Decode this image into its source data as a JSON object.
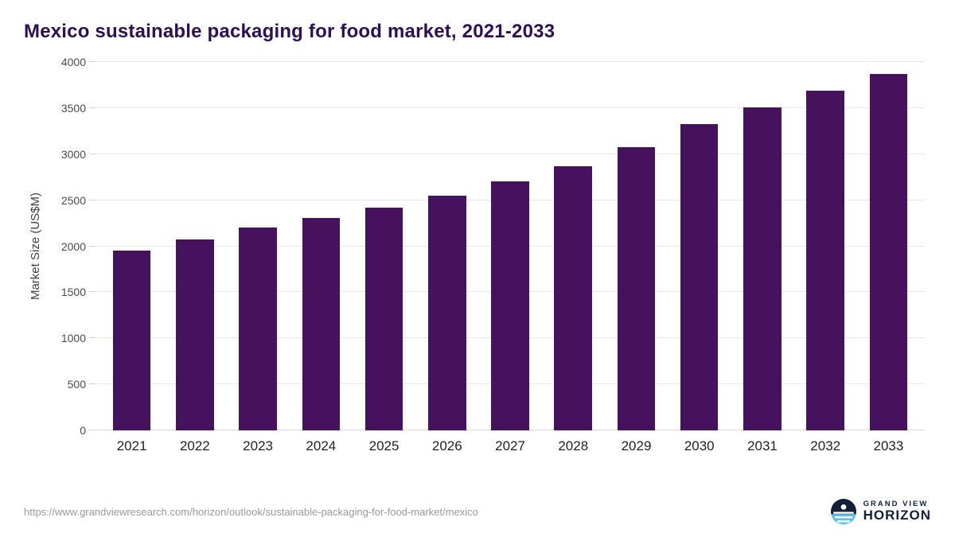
{
  "page": {
    "title": "Mexico sustainable packaging for food market, 2021-2033"
  },
  "chart_data": {
    "type": "bar",
    "title": "Mexico sustainable packaging for food market, 2021-2033",
    "categories": [
      "2021",
      "2022",
      "2023",
      "2024",
      "2025",
      "2026",
      "2027",
      "2028",
      "2029",
      "2030",
      "2031",
      "2032",
      "2033"
    ],
    "values": [
      1955,
      2075,
      2205,
      2310,
      2420,
      2550,
      2700,
      2865,
      3075,
      3330,
      3510,
      3685,
      3870
    ],
    "xlabel": "",
    "ylabel": "Market Size (US$M)",
    "ylim": [
      0,
      4000
    ],
    "yticks": [
      0,
      500,
      1000,
      1500,
      2000,
      2500,
      3000,
      3500,
      4000
    ],
    "grid": true,
    "legend": "none",
    "bar_color": "#46125e"
  },
  "footer": {
    "source_url": "https://www.grandviewresearch.com/horizon/outlook/sustainable-packaging-for-food-market/mexico",
    "logo_line1": "GRAND VIEW",
    "logo_line2": "HORIZON"
  },
  "colors": {
    "bar": "#46125e",
    "title": "#2d0f54",
    "gridline": "#e7e7e7",
    "axis_text": "#4c4c4c",
    "logo_navy": "#13203c",
    "logo_blue": "#5bc2e8"
  }
}
